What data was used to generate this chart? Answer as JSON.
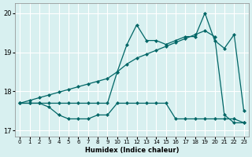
{
  "xlabel": "Humidex (Indice chaleur)",
  "bg_color": "#d8f0f0",
  "grid_color": "#ffffff",
  "line_color": "#006666",
  "xlim": [
    -0.5,
    23.5
  ],
  "ylim": [
    16.85,
    20.25
  ],
  "yticks": [
    17,
    18,
    19,
    20
  ],
  "xticks": [
    0,
    1,
    2,
    3,
    4,
    5,
    6,
    7,
    8,
    9,
    10,
    11,
    12,
    13,
    14,
    15,
    16,
    17,
    18,
    19,
    20,
    21,
    22,
    23
  ],
  "series_max": [
    17.7,
    17.7,
    17.7,
    17.7,
    17.7,
    17.7,
    17.7,
    17.7,
    17.7,
    17.7,
    18.5,
    19.2,
    19.7,
    19.3,
    19.3,
    19.2,
    19.3,
    19.4,
    19.4,
    20.0,
    19.3,
    19.1,
    19.45,
    17.5
  ],
  "series_diagonal": [
    17.7,
    17.77,
    17.84,
    17.91,
    17.98,
    18.05,
    18.12,
    18.19,
    18.26,
    18.33,
    18.5,
    18.7,
    18.85,
    18.95,
    19.05,
    19.15,
    19.25,
    19.35,
    19.45,
    19.55,
    19.4,
    17.4,
    17.2,
    17.2
  ],
  "series_min": [
    17.7,
    17.7,
    17.7,
    17.6,
    17.4,
    17.3,
    17.3,
    17.3,
    17.4,
    17.4,
    17.7,
    17.7,
    17.7,
    17.7,
    17.7,
    17.7,
    17.3,
    17.3,
    17.3,
    17.3,
    17.3,
    17.3,
    17.3,
    17.2
  ]
}
